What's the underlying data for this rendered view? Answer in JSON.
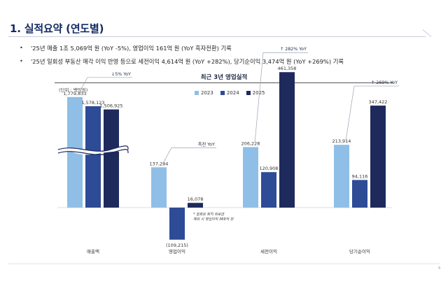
{
  "page": {
    "title": "1. 실적요약 (연도별)",
    "bullets": [
      "'25년 매출 1조 5,069억 원 (YoY -5%), 영업이익 161억 원 (YoY 흑자전환) 기록",
      "'25년 일회성 부동산 매각 이익 반영 등으로 세전이익 4,614억 원 (YoY +282%), 당기순이익 3,474억 원 (YoY +269%) 기록"
    ],
    "page_number": "9"
  },
  "colors": {
    "title": "#142b63",
    "s2023": "#8fbfe6",
    "s2024": "#2e4b96",
    "s2025": "#1e2a5c"
  },
  "chart_data": {
    "type": "bar",
    "title": "최근 3년 영업실적",
    "unit_label": "(단위 : 백만원)",
    "categories": [
      "매출액",
      "영업이익",
      "세전이익",
      "당기순이익"
    ],
    "series": [
      {
        "name": "2023",
        "values": [
          1779833,
          137284,
          206228,
          213914
        ]
      },
      {
        "name": "2024",
        "values": [
          1578123,
          -109215,
          120908,
          94116
        ]
      },
      {
        "name": "2025",
        "values": [
          1506925,
          16078,
          461358,
          347422
        ]
      }
    ],
    "value_labels": [
      [
        "1,779,833",
        "1,578,123",
        "1,506,925"
      ],
      [
        "137,284",
        "(109,215)",
        "16,078"
      ],
      [
        "206,228",
        "120,908",
        "461,358"
      ],
      [
        "213,914",
        "94,116",
        "347,422"
      ]
    ],
    "yoy_labels": [
      "↓5% YoY",
      "흑전  YoY",
      "↑ 282% YoY",
      "↑ 269% YoY"
    ],
    "axis_break": true,
    "note": "* 일회성 퇴직 위로금\n제외 시 영업이익 369억 원",
    "legend": "top-center",
    "grid": false
  }
}
